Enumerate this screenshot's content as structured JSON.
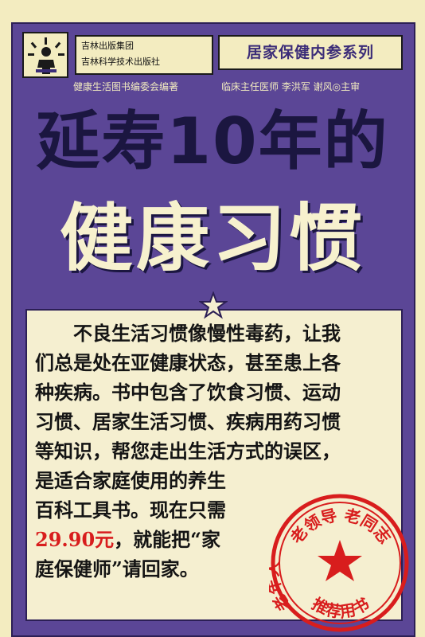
{
  "publisher": {
    "group": "吉林出版集团",
    "press": "吉林科学技术出版社",
    "editor": "健康生活图书编委会编著"
  },
  "series": "居家保健内参系列",
  "chief_editors": "临床主任医师  李洪军  谢风◎主审",
  "title_line1": "延寿10年的",
  "title_line2": "健康习惯",
  "blurb": {
    "line1": "不良生活习惯像慢性毒药，让我",
    "line2": "们总是处在亚健康状态，甚至患上各",
    "line3": "种疾病。书中包含了饮食习惯、运动",
    "line4": "习惯、居家生活习惯、疾病用药习惯",
    "line5": "等知识，帮您走出生活方式的误区，",
    "line6": "是适合家庭使用的养生",
    "line7": "百科工具书。现在只需",
    "price": "29.90元",
    "line8_rest": "，就能把“家",
    "line9": "庭保健师”请回家。"
  },
  "stamp": {
    "top": "老领导  老同志",
    "left": "老年人",
    "bottom": "推荐用书"
  },
  "colors": {
    "cover_bg": "#f3ecc0",
    "purple": "#5b4696",
    "title_dark": "#1b1640",
    "stamp_red": "#d81d1d"
  }
}
